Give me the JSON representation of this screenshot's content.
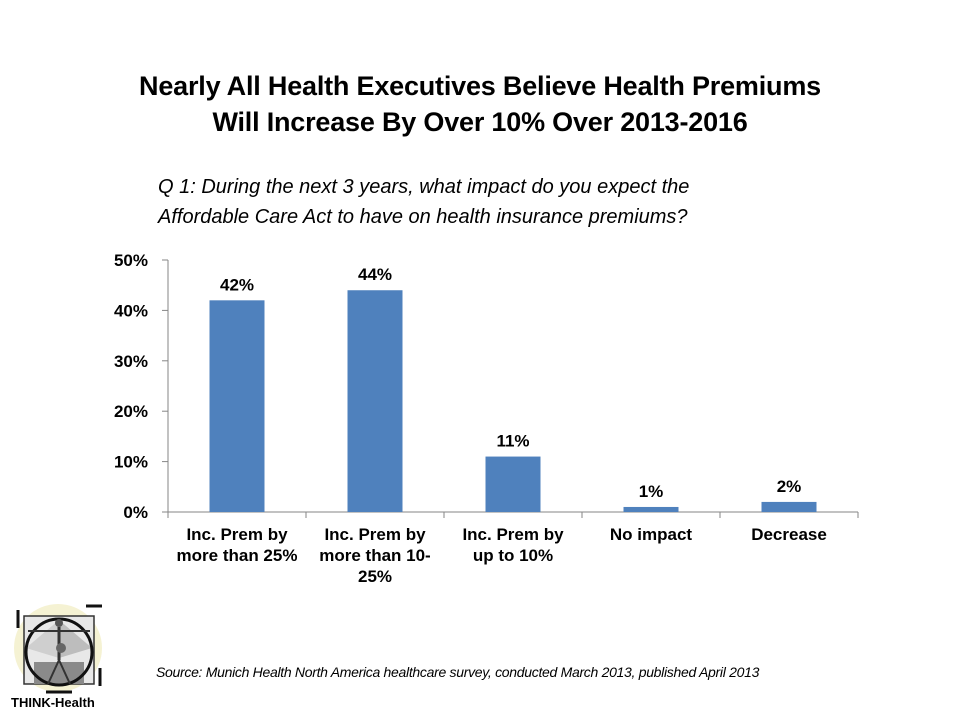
{
  "title_lines": [
    "Nearly All Health Executives Believe Health Premiums",
    "Will Increase By Over 10% Over 2013-2016"
  ],
  "question_lines": [
    "Q 1:  During the next 3 years, what impact do you expect the",
    "Affordable Care Act to have on health insurance premiums?"
  ],
  "source": "Source: Munich Health North America healthcare survey, conducted March 2013, published April 2013",
  "logo": {
    "text": "THINK-Health",
    "icon": "vitruvian-man-icon"
  },
  "colors": {
    "bar": "#4f81bd",
    "axis": "#868686"
  },
  "chart_data": {
    "type": "bar",
    "title": "Nearly All Health Executives Believe Health Premiums Will Increase By Over 10% Over 2013-2016",
    "xlabel": "",
    "ylabel": "",
    "categories": [
      [
        "Inc. Prem by",
        "more than 25%"
      ],
      [
        "Inc. Prem by",
        "more than 10-",
        "25%"
      ],
      [
        "Inc. Prem by",
        "up to 10%"
      ],
      [
        "No impact"
      ],
      [
        "Decrease"
      ]
    ],
    "values": [
      42,
      44,
      11,
      1,
      2
    ],
    "data_labels": [
      "42%",
      "44%",
      "11%",
      "1%",
      "2%"
    ],
    "ylim": [
      0,
      50
    ],
    "yticks": [
      0,
      10,
      20,
      30,
      40,
      50
    ],
    "ytick_labels": [
      "0%",
      "10%",
      "20%",
      "30%",
      "40%",
      "50%"
    ],
    "grid": false,
    "legend": "none"
  }
}
